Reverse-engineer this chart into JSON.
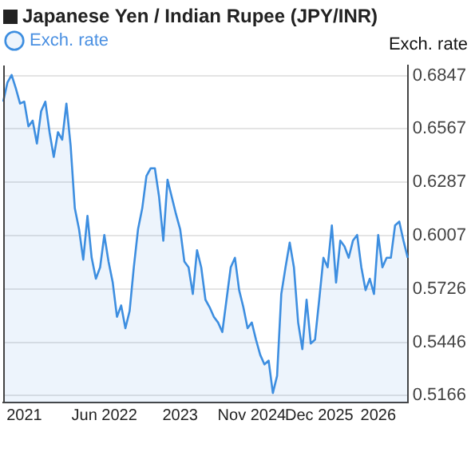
{
  "chart_data": {
    "type": "area",
    "title": "Japanese Yen / Indian Rupee (JPY/INR)",
    "ylabel": "Exch. rate",
    "categories": [
      null,
      null,
      null,
      null,
      null,
      "2021",
      null,
      null,
      null,
      null,
      null,
      null,
      null,
      null,
      null,
      null,
      null,
      null,
      null,
      null,
      null,
      null,
      null,
      null,
      "Jun 2022",
      null,
      null,
      null,
      null,
      null,
      null,
      null,
      null,
      null,
      null,
      null,
      null,
      null,
      null,
      null,
      null,
      null,
      "2023",
      null,
      null,
      null,
      null,
      null,
      null,
      null,
      null,
      null,
      null,
      null,
      null,
      null,
      null,
      null,
      null,
      "Nov 2024",
      null,
      null,
      null,
      null,
      null,
      null,
      null,
      null,
      null,
      null,
      null,
      null,
      null,
      null,
      null,
      "Dec 2025",
      null,
      null,
      null,
      null,
      null,
      null,
      null,
      null,
      null,
      null,
      null,
      null,
      null,
      "2026",
      null,
      null,
      null,
      null,
      null,
      null,
      null
    ],
    "series": [
      {
        "name": "Exch. rate",
        "color": "#3d8ee0",
        "values": [
          0.671,
          0.681,
          0.685,
          0.678,
          0.67,
          0.671,
          0.658,
          0.661,
          0.649,
          0.666,
          0.671,
          0.655,
          0.642,
          0.655,
          0.651,
          0.67,
          0.648,
          0.615,
          0.604,
          0.588,
          0.611,
          0.589,
          0.578,
          0.584,
          0.601,
          0.587,
          0.576,
          0.558,
          0.564,
          0.552,
          0.561,
          0.584,
          0.604,
          0.615,
          0.632,
          0.636,
          0.636,
          0.621,
          0.598,
          0.63,
          0.621,
          0.612,
          0.604,
          0.587,
          0.584,
          0.57,
          0.593,
          0.584,
          0.567,
          0.563,
          0.558,
          0.555,
          0.55,
          0.567,
          0.584,
          0.589,
          0.572,
          0.563,
          0.552,
          0.555,
          0.546,
          0.538,
          0.533,
          0.535,
          0.518,
          0.527,
          0.57,
          0.584,
          0.597,
          0.584,
          0.555,
          0.541,
          0.567,
          0.544,
          0.546,
          0.567,
          0.589,
          0.584,
          0.606,
          0.576,
          0.598,
          0.595,
          0.589,
          0.598,
          0.601,
          0.584,
          0.572,
          0.578,
          0.57,
          0.601,
          0.584,
          0.589,
          0.589,
          0.606,
          0.608,
          0.598,
          0.589
        ]
      }
    ],
    "ylim": [
      0.513,
      0.69
    ],
    "yticks": [
      0.5166,
      0.5446,
      0.5726,
      0.6007,
      0.6287,
      0.6567,
      0.6847
    ],
    "grid": "y",
    "legend": "top left",
    "marker": "none"
  }
}
